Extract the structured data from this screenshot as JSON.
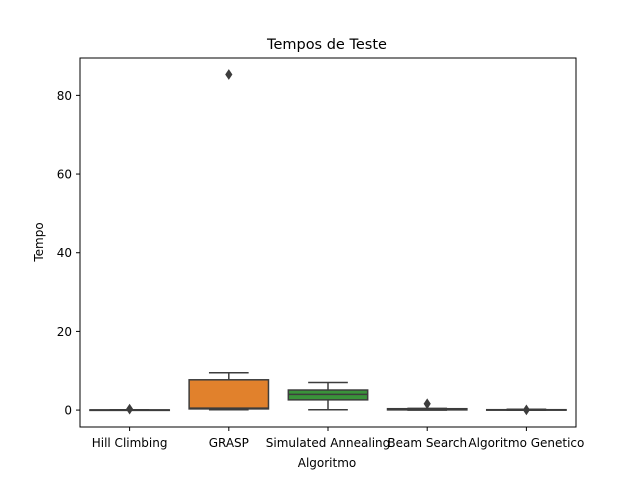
{
  "chart_data": {
    "type": "box",
    "title": "Tempos de Teste",
    "xlabel": "Algoritmo",
    "ylabel": "Tempo",
    "ylim": [
      -4.3,
      89.5
    ],
    "yticks": [
      0,
      20,
      40,
      60,
      80
    ],
    "grid": false,
    "categories": [
      "Hill Climbing",
      "GRASP",
      "Simulated Annealing",
      "Beam Search",
      "Algoritmo Genetico"
    ],
    "boxes": [
      {
        "category": "Hill Climbing",
        "whislo": 0.0,
        "q1": 0.0,
        "med": 0.02,
        "q3": 0.05,
        "whishi": 0.1,
        "fliers": [
          0.25
        ],
        "color": "#3274a1"
      },
      {
        "category": "GRASP",
        "whislo": 0.1,
        "q1": 0.3,
        "med": 0.5,
        "q3": 7.7,
        "whishi": 9.5,
        "fliers": [
          85.3
        ],
        "color": "#e1812c"
      },
      {
        "category": "Simulated Annealing",
        "whislo": 0.1,
        "q1": 2.6,
        "med": 4.0,
        "q3": 5.1,
        "whishi": 7.0,
        "fliers": [],
        "color": "#3a923a"
      },
      {
        "category": "Beam Search",
        "whislo": 0.0,
        "q1": 0.05,
        "med": 0.15,
        "q3": 0.35,
        "whishi": 0.45,
        "fliers": [
          1.6
        ],
        "color": "#c03d3e"
      },
      {
        "category": "Algoritmo Genetico",
        "whislo": 0.0,
        "q1": 0.02,
        "med": 0.05,
        "q3": 0.1,
        "whishi": 0.2,
        "fliers": [
          0.05
        ],
        "color": "#9372b2"
      }
    ]
  }
}
